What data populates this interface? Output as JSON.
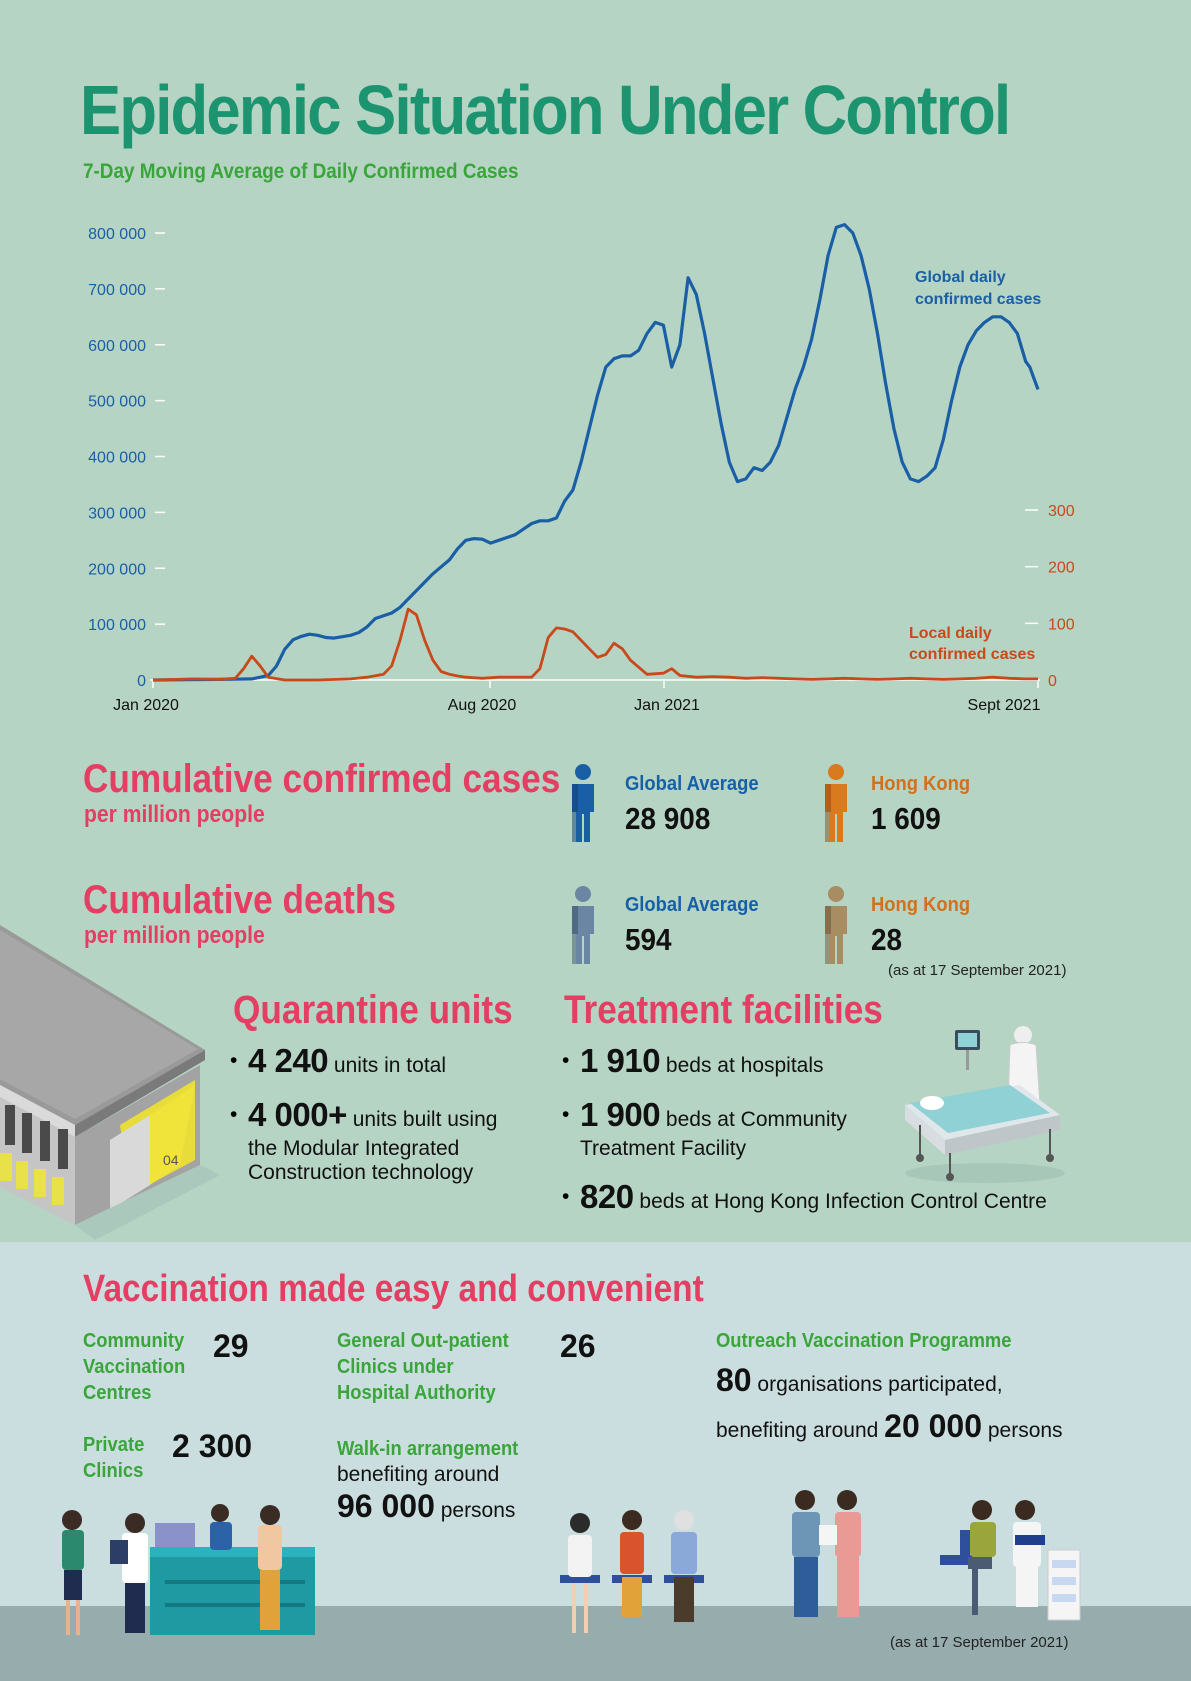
{
  "title": "Epidemic Situation Under Control",
  "subtitle": "7-Day Moving Average of Daily Confirmed Cases",
  "chart_data": {
    "type": "line",
    "title": "7-Day Moving Average of Daily Confirmed Cases",
    "x_ticks": [
      "Jan 2020",
      "Aug 2020",
      "Jan 2021",
      "Sept 2021"
    ],
    "left_axis": {
      "ticks": [
        "800 000",
        "700 000",
        "600 000",
        "500 000",
        "400 000",
        "300 000",
        "200 000",
        "100 000",
        "0"
      ],
      "ylim": [
        0,
        800000
      ]
    },
    "right_axis": {
      "ticks": [
        "300",
        "200",
        "100",
        "0"
      ],
      "ylim": [
        0,
        300
      ]
    },
    "series": [
      {
        "name": "Global daily confirmed cases",
        "label_line1": "Global daily",
        "label_line2": "confirmed cases",
        "axis": "left",
        "color": "#1a5fa6",
        "points": [
          [
            0,
            0
          ],
          [
            4,
            500
          ],
          [
            8,
            1000
          ],
          [
            10,
            1500
          ],
          [
            12,
            2000
          ],
          [
            14,
            8000
          ],
          [
            15,
            25000
          ],
          [
            16,
            55000
          ],
          [
            17,
            72000
          ],
          [
            18,
            78000
          ],
          [
            19,
            82000
          ],
          [
            20,
            80000
          ],
          [
            21,
            76000
          ],
          [
            22,
            75000
          ],
          [
            24,
            80000
          ],
          [
            25,
            85000
          ],
          [
            26,
            95000
          ],
          [
            27,
            110000
          ],
          [
            29,
            120000
          ],
          [
            30,
            130000
          ],
          [
            32,
            160000
          ],
          [
            34,
            190000
          ],
          [
            36,
            215000
          ],
          [
            37,
            235000
          ],
          [
            38,
            250000
          ],
          [
            39,
            253000
          ],
          [
            40,
            252000
          ],
          [
            41,
            245000
          ],
          [
            42,
            250000
          ],
          [
            43,
            255000
          ],
          [
            44,
            260000
          ],
          [
            45,
            270000
          ],
          [
            46,
            280000
          ],
          [
            47,
            285000
          ],
          [
            48,
            285000
          ],
          [
            49,
            290000
          ],
          [
            50,
            320000
          ],
          [
            51,
            340000
          ],
          [
            52,
            390000
          ],
          [
            53,
            450000
          ],
          [
            54,
            510000
          ],
          [
            55,
            560000
          ],
          [
            56,
            575000
          ],
          [
            57,
            580000
          ],
          [
            58,
            580000
          ],
          [
            59,
            590000
          ],
          [
            60,
            620000
          ],
          [
            61,
            640000
          ],
          [
            62,
            635000
          ],
          [
            63,
            560000
          ],
          [
            64,
            600000
          ],
          [
            65,
            720000
          ],
          [
            66,
            690000
          ],
          [
            67,
            620000
          ],
          [
            68,
            540000
          ],
          [
            69,
            460000
          ],
          [
            70,
            390000
          ],
          [
            71,
            355000
          ],
          [
            72,
            360000
          ],
          [
            73,
            380000
          ],
          [
            74,
            375000
          ],
          [
            75,
            390000
          ],
          [
            76,
            420000
          ],
          [
            77,
            470000
          ],
          [
            78,
            520000
          ],
          [
            79,
            560000
          ],
          [
            80,
            610000
          ],
          [
            81,
            680000
          ],
          [
            82,
            760000
          ],
          [
            83,
            810000
          ],
          [
            84,
            815000
          ],
          [
            85,
            800000
          ],
          [
            86,
            760000
          ],
          [
            87,
            700000
          ],
          [
            88,
            620000
          ],
          [
            89,
            530000
          ],
          [
            90,
            450000
          ],
          [
            91,
            390000
          ],
          [
            92,
            360000
          ],
          [
            93,
            355000
          ],
          [
            94,
            365000
          ],
          [
            95,
            380000
          ],
          [
            96,
            430000
          ],
          [
            97,
            500000
          ],
          [
            98,
            560000
          ],
          [
            99,
            600000
          ],
          [
            100,
            625000
          ],
          [
            101,
            640000
          ],
          [
            102,
            650000
          ],
          [
            103,
            650000
          ],
          [
            104,
            640000
          ],
          [
            105,
            620000
          ],
          [
            106,
            570000
          ],
          [
            106.5,
            560000
          ],
          [
            107,
            540000
          ],
          [
            107.5,
            520000
          ]
        ]
      },
      {
        "name": "Local daily confirmed cases",
        "label_line1": "Local daily",
        "label_line2": "confirmed cases",
        "axis": "right",
        "color": "#c9491a",
        "points": [
          [
            0,
            0
          ],
          [
            5,
            2
          ],
          [
            8,
            1
          ],
          [
            10,
            3
          ],
          [
            11,
            20
          ],
          [
            12,
            42
          ],
          [
            13,
            25
          ],
          [
            14,
            5
          ],
          [
            16,
            0
          ],
          [
            20,
            0
          ],
          [
            24,
            2
          ],
          [
            26,
            5
          ],
          [
            28,
            10
          ],
          [
            29,
            25
          ],
          [
            30,
            70
          ],
          [
            31,
            125
          ],
          [
            32,
            115
          ],
          [
            33,
            70
          ],
          [
            34,
            35
          ],
          [
            35,
            15
          ],
          [
            36,
            10
          ],
          [
            37,
            7
          ],
          [
            38,
            5
          ],
          [
            40,
            3
          ],
          [
            42,
            5
          ],
          [
            44,
            5
          ],
          [
            46,
            5
          ],
          [
            47,
            20
          ],
          [
            48,
            75
          ],
          [
            49,
            92
          ],
          [
            50,
            90
          ],
          [
            51,
            85
          ],
          [
            52,
            70
          ],
          [
            53,
            55
          ],
          [
            54,
            40
          ],
          [
            55,
            45
          ],
          [
            56,
            65
          ],
          [
            57,
            55
          ],
          [
            58,
            35
          ],
          [
            60,
            10
          ],
          [
            62,
            12
          ],
          [
            63,
            20
          ],
          [
            64,
            8
          ],
          [
            66,
            5
          ],
          [
            68,
            6
          ],
          [
            70,
            5
          ],
          [
            72,
            3
          ],
          [
            74,
            4
          ],
          [
            76,
            3
          ],
          [
            78,
            2
          ],
          [
            80,
            1
          ],
          [
            82,
            2
          ],
          [
            84,
            3
          ],
          [
            86,
            2
          ],
          [
            88,
            1
          ],
          [
            90,
            2
          ],
          [
            92,
            3
          ],
          [
            94,
            2
          ],
          [
            96,
            1
          ],
          [
            98,
            2
          ],
          [
            100,
            3
          ],
          [
            102,
            5
          ],
          [
            104,
            3
          ],
          [
            106,
            2
          ],
          [
            107.5,
            2
          ]
        ]
      }
    ]
  },
  "cases": {
    "heading": "Cumulative confirmed cases",
    "sub": "per million people",
    "global_label": "Global Average",
    "global_value": "28 908",
    "hk_label": "Hong Kong",
    "hk_value": "1 609"
  },
  "deaths": {
    "heading": "Cumulative deaths",
    "sub": "per million people",
    "global_label": "Global Average",
    "global_value": "594",
    "hk_label": "Hong Kong",
    "hk_value": "28",
    "note": "(as at 17 September 2021)"
  },
  "quarantine": {
    "heading": "Quarantine units",
    "b1_num": "4 240",
    "b1_text": " units in total",
    "b2_num": "4 000+",
    "b2_text": " units built using",
    "b2_line2": "the Modular Integrated",
    "b2_line3": "Construction technology",
    "building_tag": "04"
  },
  "treatment": {
    "heading": "Treatment facilities",
    "b1_num": "1 910",
    "b1_text": " beds at hospitals",
    "b2_num": "1 900",
    "b2_text": " beds at Community",
    "b2_line2": "Treatment Facility",
    "b3_num": "820",
    "b3_text": " beds at Hong Kong Infection Control Centre"
  },
  "vaccination": {
    "heading": "Vaccination made easy and convenient",
    "cvc_label_1": "Community",
    "cvc_label_2": "Vaccination",
    "cvc_label_3": "Centres",
    "cvc_value": "29",
    "gopc_label_1": "General Out-patient",
    "gopc_label_2": "Clinics under",
    "gopc_label_3": "Hospital Authority",
    "gopc_value": "26",
    "private_label_1": "Private",
    "private_label_2": "Clinics",
    "private_value": "2 300",
    "walkin_label": "Walk-in arrangement",
    "walkin_text": "benefiting around",
    "walkin_num": "96 000",
    "walkin_unit": " persons",
    "outreach_label": "Outreach Vaccination Programme",
    "outreach_num": "80",
    "outreach_text": " organisations participated,",
    "outreach_text2": "benefiting around ",
    "outreach_num2": "20 000",
    "outreach_unit": " persons",
    "note": "(as at 17 September 2021)"
  },
  "colors": {
    "bg_green": "#b5d4c4",
    "bg_blue": "#cbdedf",
    "title_green": "#1d9470",
    "pink": "#e53e63",
    "blue": "#1760a8",
    "orange": "#d2711d"
  }
}
